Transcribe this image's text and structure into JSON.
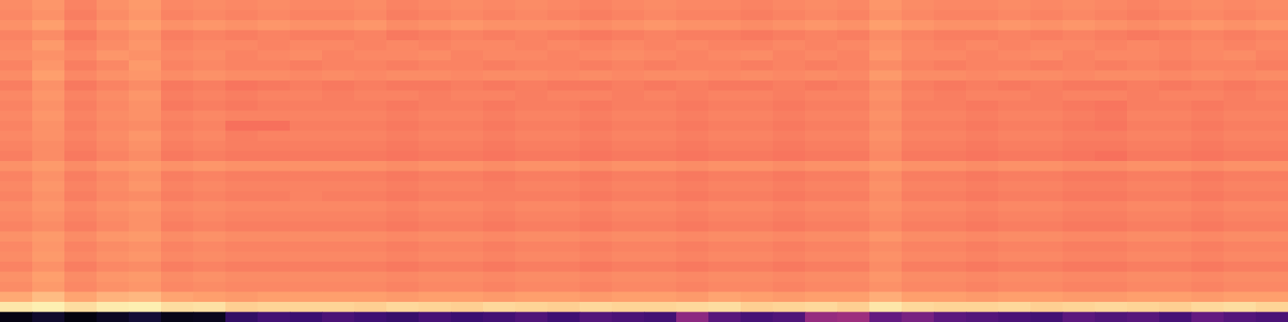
{
  "chart_data": {
    "type": "heatmap",
    "tick_labels": false,
    "color": "magma",
    "zlim": [
      0,
      100
    ],
    "cells": [
      [
        76,
        78,
        74,
        77,
        79,
        75,
        76,
        75,
        76,
        75,
        75,
        76,
        74,
        75,
        76,
        75,
        76,
        75,
        74,
        75,
        76,
        75,
        75,
        74,
        75,
        76,
        75,
        78,
        76,
        75,
        75,
        76,
        75,
        76,
        75,
        74,
        75,
        76,
        75,
        76
      ],
      [
        75,
        77,
        73,
        76,
        78,
        74,
        75,
        74,
        75,
        74,
        74,
        75,
        73,
        74,
        75,
        74,
        75,
        74,
        73,
        74,
        75,
        74,
        74,
        73,
        74,
        75,
        74,
        77,
        75,
        74,
        74,
        75,
        74,
        75,
        74,
        73,
        74,
        75,
        74,
        75
      ],
      [
        77,
        80,
        75,
        78,
        80,
        77,
        78,
        77,
        78,
        77,
        77,
        78,
        76,
        77,
        78,
        77,
        77,
        77,
        76,
        77,
        78,
        77,
        77,
        76,
        77,
        78,
        77,
        80,
        78,
        77,
        77,
        78,
        77,
        78,
        77,
        76,
        77,
        78,
        77,
        78
      ],
      [
        74,
        76,
        72,
        75,
        77,
        73,
        74,
        73,
        74,
        73,
        73,
        74,
        72,
        73,
        74,
        73,
        74,
        73,
        72,
        73,
        74,
        73,
        73,
        72,
        73,
        74,
        73,
        76,
        74,
        73,
        73,
        74,
        73,
        74,
        73,
        72,
        73,
        74,
        73,
        74
      ],
      [
        75,
        79,
        74,
        76,
        78,
        74,
        75,
        75,
        74,
        75,
        75,
        74,
        75,
        74,
        75,
        75,
        74,
        75,
        74,
        75,
        74,
        75,
        74,
        74,
        75,
        74,
        75,
        77,
        75,
        74,
        75,
        74,
        75,
        75,
        74,
        75,
        74,
        75,
        74,
        75
      ],
      [
        76,
        77,
        75,
        78,
        77,
        75,
        76,
        74,
        75,
        76,
        74,
        75,
        75,
        76,
        74,
        75,
        75,
        74,
        75,
        76,
        75,
        74,
        75,
        76,
        74,
        75,
        74,
        78,
        75,
        75,
        74,
        75,
        76,
        74,
        75,
        75,
        74,
        75,
        76,
        74
      ],
      [
        74,
        78,
        73,
        75,
        79,
        74,
        75,
        74,
        74,
        73,
        74,
        74,
        73,
        74,
        74,
        73,
        74,
        74,
        73,
        74,
        73,
        74,
        74,
        73,
        74,
        73,
        74,
        76,
        74,
        73,
        74,
        74,
        73,
        74,
        73,
        74,
        73,
        74,
        74,
        73
      ],
      [
        76,
        80,
        75,
        77,
        78,
        76,
        77,
        76,
        76,
        75,
        76,
        75,
        76,
        76,
        75,
        76,
        76,
        75,
        76,
        75,
        76,
        76,
        75,
        76,
        75,
        76,
        75,
        79,
        76,
        76,
        75,
        76,
        76,
        75,
        76,
        76,
        75,
        76,
        75,
        76
      ],
      [
        73,
        77,
        72,
        74,
        76,
        72,
        73,
        71,
        72,
        73,
        72,
        73,
        72,
        72,
        73,
        72,
        73,
        72,
        72,
        73,
        72,
        73,
        72,
        72,
        73,
        72,
        73,
        76,
        73,
        72,
        73,
        72,
        73,
        72,
        72,
        73,
        72,
        73,
        72,
        73
      ],
      [
        75,
        78,
        74,
        76,
        78,
        73,
        74,
        73,
        74,
        74,
        73,
        74,
        74,
        73,
        74,
        74,
        73,
        74,
        74,
        73,
        74,
        73,
        74,
        74,
        73,
        74,
        74,
        77,
        74,
        73,
        74,
        74,
        73,
        74,
        74,
        73,
        74,
        74,
        73,
        74
      ],
      [
        74,
        77,
        73,
        75,
        77,
        72,
        73,
        72,
        73,
        73,
        73,
        73,
        72,
        73,
        73,
        72,
        73,
        73,
        72,
        73,
        73,
        72,
        73,
        73,
        72,
        73,
        73,
        76,
        73,
        73,
        72,
        73,
        73,
        72,
        71,
        73,
        73,
        72,
        73,
        73
      ],
      [
        75,
        78,
        74,
        76,
        77,
        74,
        75,
        74,
        74,
        74,
        74,
        74,
        73,
        74,
        74,
        73,
        74,
        74,
        73,
        74,
        74,
        73,
        74,
        74,
        73,
        74,
        74,
        77,
        74,
        74,
        73,
        74,
        74,
        73,
        72,
        74,
        74,
        73,
        74,
        74
      ],
      [
        74,
        77,
        73,
        75,
        76,
        73,
        74,
        70,
        70,
        73,
        73,
        73,
        72,
        73,
        73,
        72,
        73,
        73,
        72,
        73,
        73,
        72,
        73,
        73,
        72,
        73,
        73,
        76,
        73,
        73,
        72,
        73,
        73,
        72,
        71,
        73,
        73,
        72,
        73,
        73
      ],
      [
        75,
        77,
        74,
        76,
        78,
        74,
        75,
        73,
        74,
        74,
        74,
        74,
        73,
        74,
        74,
        73,
        74,
        74,
        73,
        74,
        74,
        73,
        74,
        74,
        73,
        74,
        74,
        77,
        74,
        74,
        73,
        74,
        74,
        73,
        73,
        74,
        74,
        73,
        74,
        74
      ],
      [
        74,
        76,
        73,
        75,
        77,
        73,
        74,
        73,
        73,
        73,
        73,
        73,
        72,
        73,
        73,
        72,
        73,
        73,
        72,
        73,
        73,
        72,
        73,
        73,
        72,
        73,
        73,
        76,
        73,
        73,
        72,
        73,
        73,
        72,
        72,
        73,
        73,
        72,
        73,
        73
      ],
      [
        73,
        76,
        72,
        74,
        76,
        72,
        73,
        72,
        72,
        72,
        72,
        72,
        71,
        72,
        72,
        71,
        72,
        72,
        71,
        72,
        72,
        71,
        72,
        72,
        71,
        72,
        72,
        75,
        72,
        72,
        71,
        72,
        72,
        71,
        70,
        72,
        72,
        71,
        72,
        72
      ],
      [
        77,
        79,
        76,
        78,
        79,
        77,
        78,
        77,
        77,
        77,
        77,
        77,
        76,
        77,
        77,
        76,
        77,
        77,
        76,
        77,
        77,
        76,
        77,
        77,
        76,
        77,
        77,
        79,
        77,
        77,
        76,
        77,
        77,
        76,
        76,
        77,
        77,
        76,
        77,
        77
      ],
      [
        74,
        77,
        73,
        75,
        77,
        73,
        74,
        73,
        73,
        73,
        73,
        73,
        72,
        73,
        73,
        72,
        73,
        73,
        72,
        73,
        73,
        72,
        73,
        73,
        72,
        73,
        73,
        76,
        73,
        73,
        72,
        73,
        73,
        72,
        72,
        73,
        73,
        72,
        73,
        73
      ],
      [
        75,
        78,
        74,
        76,
        78,
        74,
        75,
        74,
        74,
        74,
        74,
        74,
        73,
        74,
        74,
        73,
        74,
        74,
        73,
        74,
        74,
        73,
        74,
        74,
        73,
        74,
        74,
        77,
        74,
        74,
        73,
        74,
        74,
        73,
        73,
        74,
        74,
        73,
        74,
        74
      ],
      [
        74,
        77,
        73,
        75,
        76,
        73,
        74,
        73,
        73,
        74,
        73,
        73,
        72,
        73,
        73,
        73,
        73,
        73,
        72,
        73,
        73,
        72,
        73,
        73,
        72,
        73,
        73,
        76,
        73,
        73,
        72,
        73,
        73,
        72,
        72,
        73,
        73,
        72,
        73,
        73
      ],
      [
        76,
        78,
        75,
        77,
        78,
        75,
        76,
        75,
        75,
        75,
        75,
        75,
        74,
        75,
        75,
        74,
        75,
        75,
        74,
        75,
        75,
        74,
        75,
        75,
        74,
        75,
        75,
        77,
        75,
        75,
        74,
        75,
        75,
        74,
        74,
        75,
        75,
        74,
        75,
        75
      ],
      [
        75,
        77,
        74,
        76,
        77,
        74,
        75,
        74,
        74,
        74,
        74,
        74,
        73,
        74,
        74,
        73,
        74,
        74,
        73,
        74,
        74,
        73,
        74,
        74,
        73,
        74,
        74,
        76,
        74,
        74,
        73,
        74,
        74,
        73,
        73,
        74,
        74,
        73,
        74,
        74
      ],
      [
        74,
        76,
        73,
        75,
        77,
        73,
        74,
        73,
        73,
        73,
        73,
        73,
        72,
        73,
        73,
        72,
        73,
        73,
        72,
        73,
        73,
        72,
        73,
        73,
        72,
        73,
        73,
        75,
        73,
        73,
        72,
        73,
        73,
        72,
        72,
        73,
        73,
        72,
        73,
        73
      ],
      [
        77,
        79,
        76,
        78,
        79,
        76,
        77,
        76,
        76,
        76,
        76,
        76,
        75,
        76,
        76,
        75,
        76,
        76,
        75,
        76,
        76,
        75,
        76,
        76,
        75,
        76,
        76,
        78,
        76,
        76,
        75,
        76,
        76,
        75,
        75,
        76,
        76,
        75,
        76,
        76
      ],
      [
        75,
        78,
        74,
        76,
        77,
        74,
        75,
        74,
        74,
        74,
        74,
        74,
        73,
        74,
        74,
        73,
        74,
        74,
        73,
        74,
        74,
        73,
        74,
        74,
        73,
        74,
        74,
        76,
        74,
        74,
        73,
        74,
        74,
        73,
        73,
        74,
        74,
        73,
        74,
        74
      ],
      [
        76,
        79,
        75,
        77,
        78,
        75,
        76,
        75,
        75,
        75,
        75,
        75,
        74,
        75,
        75,
        74,
        75,
        75,
        74,
        75,
        75,
        74,
        75,
        75,
        74,
        75,
        75,
        77,
        75,
        75,
        74,
        75,
        75,
        74,
        74,
        75,
        75,
        74,
        75,
        75
      ],
      [
        74,
        77,
        73,
        75,
        76,
        73,
        74,
        73,
        73,
        73,
        73,
        73,
        72,
        73,
        73,
        72,
        73,
        73,
        72,
        73,
        73,
        72,
        73,
        73,
        72,
        73,
        73,
        76,
        73,
        73,
        72,
        73,
        73,
        72,
        72,
        73,
        73,
        72,
        73,
        73
      ],
      [
        77,
        80,
        76,
        78,
        79,
        76,
        77,
        76,
        76,
        76,
        76,
        76,
        75,
        76,
        76,
        75,
        76,
        76,
        75,
        76,
        76,
        75,
        76,
        76,
        75,
        76,
        76,
        78,
        76,
        76,
        75,
        76,
        76,
        75,
        75,
        76,
        76,
        75,
        76,
        76
      ],
      [
        76,
        79,
        75,
        77,
        78,
        75,
        76,
        75,
        75,
        75,
        75,
        75,
        74,
        75,
        75,
        74,
        75,
        75,
        74,
        75,
        75,
        74,
        75,
        75,
        74,
        75,
        75,
        77,
        75,
        75,
        74,
        75,
        75,
        74,
        74,
        75,
        75,
        74,
        75,
        75
      ],
      [
        82,
        86,
        81,
        84,
        85,
        81,
        80,
        79,
        80,
        80,
        80,
        80,
        79,
        80,
        80,
        79,
        80,
        80,
        79,
        80,
        80,
        79,
        81,
        80,
        79,
        80,
        80,
        83,
        80,
        80,
        79,
        80,
        80,
        79,
        79,
        80,
        80,
        79,
        80,
        80
      ],
      [
        95,
        97,
        93,
        96,
        97,
        93,
        94,
        90,
        91,
        91,
        91,
        90,
        92,
        91,
        90,
        92,
        91,
        90,
        92,
        91,
        91,
        92,
        93,
        90,
        91,
        92,
        90,
        95,
        92,
        91,
        91,
        92,
        90,
        91,
        92,
        91,
        90,
        92,
        93,
        91
      ],
      [
        3,
        8,
        2,
        6,
        10,
        4,
        5,
        18,
        22,
        20,
        24,
        21,
        19,
        23,
        20,
        22,
        25,
        21,
        26,
        24,
        22,
        40,
        27,
        23,
        25,
        42,
        44,
        30,
        35,
        28,
        26,
        24,
        22,
        28,
        25,
        27,
        23,
        30,
        26,
        24
      ]
    ]
  }
}
